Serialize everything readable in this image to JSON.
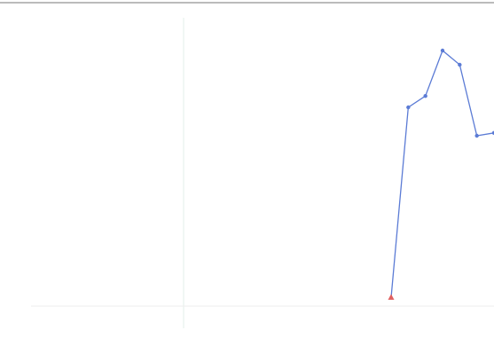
{
  "chart_data": {
    "type": "line",
    "categories": [
      null,
      null,
      null,
      null,
      null,
      null,
      null,
      null,
      null,
      null,
      null,
      null,
      null,
      null,
      null,
      null,
      null,
      null,
      null,
      null,
      null,
      null,
      null,
      null,
      null,
      null,
      null,
      null
    ],
    "series": [
      {
        "color": "#5b7bd5",
        "first_point_color": "#e06060",
        "values": [
          null,
          null,
          null,
          null,
          null,
          null,
          null,
          null,
          null,
          null,
          null,
          null,
          null,
          null,
          null,
          null,
          null,
          null,
          null,
          null,
          null,
          3,
          70,
          74,
          90,
          85,
          60,
          61
        ]
      }
    ],
    "ylim": [
      0,
      100
    ]
  }
}
